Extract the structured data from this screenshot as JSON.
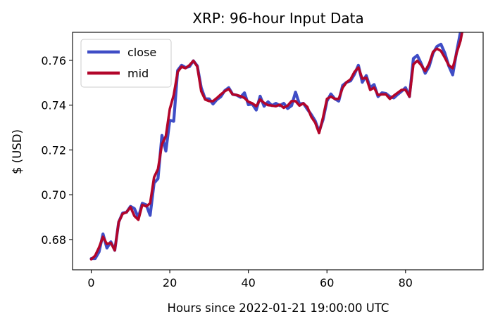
{
  "chart_data": {
    "type": "line",
    "title": "XRP: 96-hour Input Data",
    "xlabel": "Hours since 2022-01-21 19:00:00 UTC",
    "ylabel": "$ (USD)",
    "xlim": [
      -4.75,
      99.75
    ],
    "ylim": [
      0.6665,
      0.7725
    ],
    "xticks": [
      0,
      20,
      40,
      60,
      80
    ],
    "xtick_labels": [
      "0",
      "20",
      "40",
      "60",
      "80"
    ],
    "yticks": [
      0.68,
      0.7,
      0.72,
      0.74,
      0.76
    ],
    "ytick_labels": [
      "0.68",
      "0.70",
      "0.72",
      "0.74",
      "0.76"
    ],
    "grid": false,
    "legend_position": "top-left",
    "series": [
      {
        "name": "close",
        "color": "#3f4dc6",
        "x": [
          0,
          1,
          2,
          3,
          4,
          5,
          6,
          7,
          8,
          9,
          10,
          11,
          12,
          13,
          14,
          15,
          16,
          17,
          18,
          19,
          20,
          21,
          22,
          23,
          24,
          25,
          26,
          27,
          28,
          29,
          30,
          31,
          32,
          33,
          34,
          35,
          36,
          37,
          38,
          39,
          40,
          41,
          42,
          43,
          44,
          45,
          46,
          47,
          48,
          49,
          50,
          51,
          52,
          53,
          54,
          55,
          56,
          57,
          58,
          59,
          60,
          61,
          62,
          63,
          64,
          65,
          66,
          67,
          68,
          69,
          70,
          71,
          72,
          73,
          74,
          75,
          76,
          77,
          78,
          79,
          80,
          81,
          82,
          83,
          84,
          85,
          86,
          87,
          88,
          89,
          90,
          91,
          92,
          93,
          94,
          95
        ],
        "values": [
          0.6715,
          0.6715,
          0.6745,
          0.6825,
          0.6762,
          0.679,
          0.6752,
          0.6878,
          0.6918,
          0.6922,
          0.6948,
          0.6938,
          0.6898,
          0.6962,
          0.6955,
          0.6908,
          0.7052,
          0.7072,
          0.7265,
          0.7195,
          0.7332,
          0.7328,
          0.7555,
          0.7578,
          0.7568,
          0.7572,
          0.7598,
          0.7575,
          0.7478,
          0.7428,
          0.7428,
          0.7405,
          0.7425,
          0.7438,
          0.7465,
          0.7478,
          0.7448,
          0.7445,
          0.7435,
          0.7455,
          0.7402,
          0.7405,
          0.7378,
          0.744,
          0.7395,
          0.7415,
          0.7398,
          0.7408,
          0.7398,
          0.7408,
          0.7385,
          0.7398,
          0.7458,
          0.7405,
          0.7408,
          0.7382,
          0.7358,
          0.733,
          0.7282,
          0.7335,
          0.7418,
          0.745,
          0.7428,
          0.7418,
          0.7488,
          0.7502,
          0.7508,
          0.7538,
          0.7578,
          0.7502,
          0.7532,
          0.7478,
          0.7492,
          0.7438,
          0.7455,
          0.7452,
          0.7438,
          0.7432,
          0.7448,
          0.7462,
          0.7478,
          0.7438,
          0.7608,
          0.7622,
          0.7585,
          0.7542,
          0.7572,
          0.7632,
          0.7662,
          0.7672,
          0.7632,
          0.7575,
          0.7535,
          0.7638,
          0.7728,
          0.7795
        ]
      },
      {
        "name": "mid",
        "color": "#b2052a",
        "x": [
          0,
          1,
          2,
          3,
          4,
          5,
          6,
          7,
          8,
          9,
          10,
          11,
          12,
          13,
          14,
          15,
          16,
          17,
          18,
          19,
          20,
          21,
          22,
          23,
          24,
          25,
          26,
          27,
          28,
          29,
          30,
          31,
          32,
          33,
          34,
          35,
          36,
          37,
          38,
          39,
          40,
          41,
          42,
          43,
          44,
          45,
          46,
          47,
          48,
          49,
          50,
          51,
          52,
          53,
          54,
          55,
          56,
          57,
          58,
          59,
          60,
          61,
          62,
          63,
          64,
          65,
          66,
          67,
          68,
          69,
          70,
          71,
          72,
          73,
          74,
          75,
          76,
          77,
          78,
          79,
          80,
          81,
          82,
          83,
          84,
          85,
          86,
          87,
          88,
          89,
          90,
          91,
          92,
          93,
          94,
          95
        ],
        "values": [
          0.6712,
          0.6728,
          0.6765,
          0.6812,
          0.678,
          0.6785,
          0.6752,
          0.6878,
          0.6915,
          0.6922,
          0.6945,
          0.6905,
          0.6888,
          0.6955,
          0.6948,
          0.6962,
          0.7078,
          0.7115,
          0.7225,
          0.7262,
          0.7382,
          0.7445,
          0.7548,
          0.7572,
          0.7565,
          0.7578,
          0.7598,
          0.7572,
          0.7462,
          0.7425,
          0.7418,
          0.7418,
          0.7432,
          0.7448,
          0.7462,
          0.7472,
          0.7448,
          0.7445,
          0.744,
          0.7432,
          0.7415,
          0.7408,
          0.7395,
          0.7425,
          0.741,
          0.74,
          0.7398,
          0.7395,
          0.7402,
          0.7388,
          0.7398,
          0.7418,
          0.7418,
          0.7398,
          0.7408,
          0.7392,
          0.7348,
          0.7322,
          0.7275,
          0.7345,
          0.7428,
          0.7438,
          0.7428,
          0.7428,
          0.7478,
          0.7502,
          0.7515,
          0.7548,
          0.7568,
          0.7518,
          0.7522,
          0.7468,
          0.7478,
          0.7445,
          0.7448,
          0.7448,
          0.7428,
          0.7442,
          0.7455,
          0.7468,
          0.7468,
          0.7438,
          0.7582,
          0.7598,
          0.7578,
          0.7552,
          0.7585,
          0.7638,
          0.7652,
          0.7642,
          0.7612,
          0.7578,
          0.7565,
          0.7632,
          0.7688,
          0.7782
        ]
      }
    ]
  }
}
